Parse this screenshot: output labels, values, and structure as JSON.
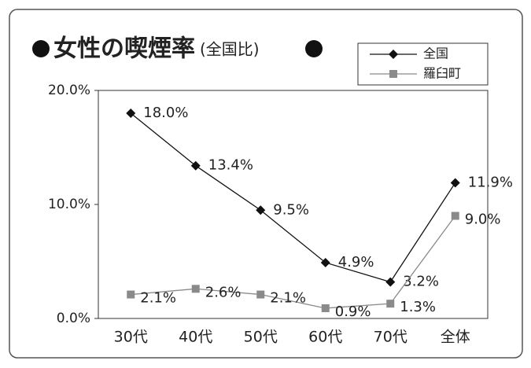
{
  "chart_data": {
    "type": "line",
    "title": "女性の喫煙率",
    "subtitle": "(全国比)",
    "categories": [
      "30代",
      "40代",
      "50代",
      "60代",
      "70代",
      "全体"
    ],
    "series": [
      {
        "name": "全国",
        "color": "#111111",
        "marker": "diamond",
        "values": [
          18.0,
          13.4,
          9.5,
          4.9,
          3.2,
          11.9
        ],
        "value_labels": [
          "18.0%",
          "13.4%",
          "9.5%",
          "4.9%",
          "3.2%",
          "11.9%"
        ]
      },
      {
        "name": "羅臼町",
        "color": "#8a8a8a",
        "marker": "square",
        "values": [
          2.1,
          2.6,
          2.1,
          0.9,
          1.3,
          9.0
        ],
        "value_labels": [
          "2.1%",
          "2.6%",
          "2.1%",
          "0.9%",
          "1.3%",
          "9.0%"
        ]
      }
    ],
    "ylim": [
      0,
      20
    ],
    "yticks": [
      {
        "value": 0,
        "label": "0.0%"
      },
      {
        "value": 10,
        "label": "10.0%"
      },
      {
        "value": 20,
        "label": "20.0%"
      }
    ],
    "legend": "top-right"
  }
}
